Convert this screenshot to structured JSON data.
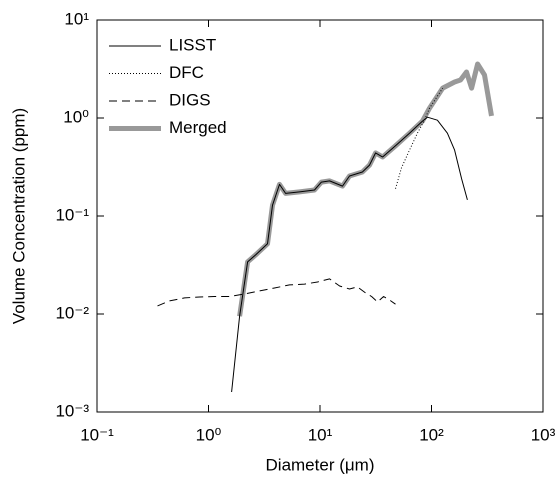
{
  "chart_data": {
    "type": "line",
    "xlabel": "Diameter (μm)",
    "ylabel": "Volume Concentration (ppm)",
    "xscale": "log",
    "yscale": "log",
    "grid": false,
    "legend": "upper-left",
    "xlim": [
      0.1,
      1000
    ],
    "xticks": [
      {
        "value": 0.1,
        "label": "10⁻¹"
      },
      {
        "value": 1,
        "label": "10⁰"
      },
      {
        "value": 10,
        "label": "10¹"
      },
      {
        "value": 100,
        "label": "10²"
      },
      {
        "value": 1000,
        "label": "10³"
      }
    ],
    "ylim": [
      0.001,
      10
    ],
    "yticks": [
      {
        "value": 0.001,
        "label": "10⁻³"
      },
      {
        "value": 0.01,
        "label": "10⁻²"
      },
      {
        "value": 0.1,
        "label": "10⁻¹"
      },
      {
        "value": 1,
        "label": "10⁰"
      },
      {
        "value": 10,
        "label": "10¹"
      }
    ],
    "series": [
      {
        "name": "LISST",
        "color": "#000000",
        "linestyle": "solid",
        "linewidth": 1,
        "x": [
          1.61,
          1.9,
          2.24,
          2.64,
          3.38,
          3.75,
          4.33,
          4.91,
          6.55,
          8.93,
          10.3,
          12.2,
          15.9,
          18.4,
          24.0,
          27.8,
          31.5,
          36.4,
          47.5,
          63.5,
          83.0,
          92,
          113,
          139,
          161,
          186,
          210
        ],
        "values": [
          0.0016,
          0.0095,
          0.034,
          0.04,
          0.052,
          0.129,
          0.21,
          0.17,
          0.176,
          0.184,
          0.222,
          0.228,
          0.202,
          0.256,
          0.281,
          0.331,
          0.44,
          0.4,
          0.52,
          0.7,
          0.93,
          1.02,
          0.95,
          0.7,
          0.47,
          0.24,
          0.146
        ]
      },
      {
        "name": "DFC",
        "color": "#000000",
        "linestyle": "dotted",
        "linewidth": 1,
        "x": [
          47.5,
          53.8,
          63.5,
          74.8,
          86.5,
          95.9,
          126
        ],
        "values": [
          0.19,
          0.31,
          0.47,
          0.7,
          0.95,
          1.26,
          2.02
        ]
      },
      {
        "name": "DIGS",
        "color": "#000000",
        "linestyle": "dashed",
        "linewidth": 1,
        "x": [
          0.349,
          0.447,
          0.61,
          0.83,
          1.13,
          1.54,
          2.1,
          2.87,
          3.91,
          5.33,
          7.26,
          9.5,
          12.2,
          15.0,
          18.4,
          21.7,
          25.6,
          29.0,
          32.8,
          37.2,
          42.0,
          47.5
        ],
        "values": [
          0.0121,
          0.0136,
          0.0146,
          0.0149,
          0.0151,
          0.0151,
          0.016,
          0.0172,
          0.0184,
          0.0198,
          0.0202,
          0.0212,
          0.0228,
          0.0193,
          0.018,
          0.0189,
          0.0164,
          0.0151,
          0.0133,
          0.0151,
          0.0139,
          0.0126
        ]
      },
      {
        "name": "Merged",
        "color": "#999999",
        "linestyle": "solid",
        "linewidth": 5,
        "x": [
          1.9,
          2.24,
          2.64,
          3.38,
          3.75,
          4.33,
          4.91,
          6.55,
          8.93,
          10.3,
          12.2,
          15.9,
          18.4,
          24.0,
          27.8,
          31.5,
          36.4,
          47.5,
          63.5,
          83.0,
          95.9,
          126,
          161,
          182,
          206,
          229,
          259,
          299,
          345
        ],
        "values": [
          0.0095,
          0.034,
          0.04,
          0.052,
          0.129,
          0.21,
          0.17,
          0.176,
          0.184,
          0.222,
          0.228,
          0.202,
          0.256,
          0.281,
          0.331,
          0.44,
          0.4,
          0.52,
          0.7,
          0.93,
          1.26,
          2.02,
          2.33,
          2.44,
          2.95,
          2.02,
          3.56,
          2.75,
          1.05
        ]
      }
    ]
  }
}
